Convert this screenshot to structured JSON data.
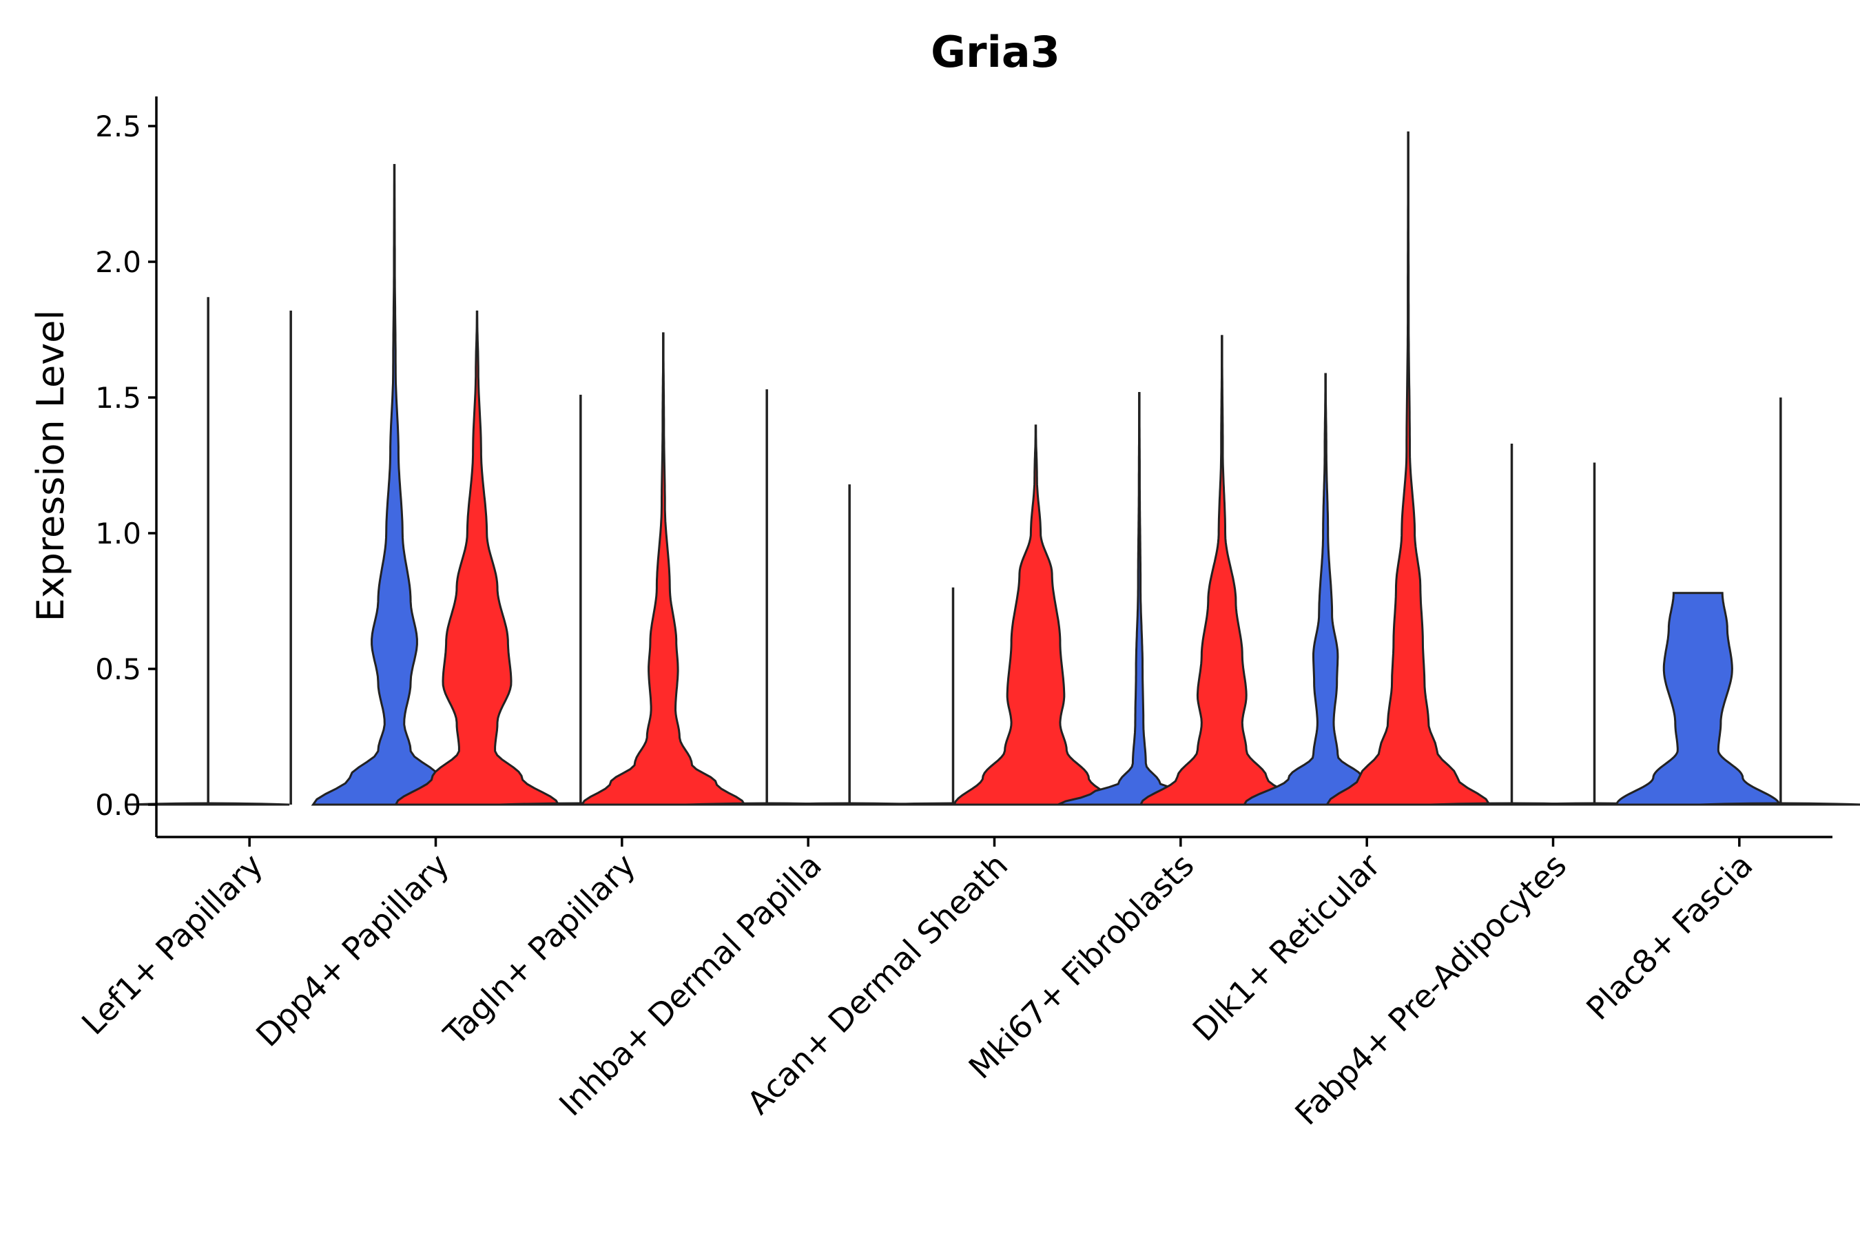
{
  "chart_data": {
    "type": "violin",
    "title": "Gria3",
    "xlabel": "",
    "ylabel": "Expression Level",
    "ylim": [
      -0.12,
      2.6
    ],
    "yticks": [
      0.0,
      0.5,
      1.0,
      1.5,
      2.0,
      2.5
    ],
    "ytick_labels": [
      "0.0",
      "0.5",
      "1.0",
      "1.5",
      "2.0",
      "2.5"
    ],
    "colors": {
      "group1": "#4169E1",
      "group2": "#FF2A2A"
    },
    "categories": [
      "Lef1+ Papillary",
      "Dpp4+ Papillary",
      "Tagln+ Papillary",
      "Inhba+ Dermal Papilla",
      "Acan+ Dermal Sheath",
      "Mki67+ Fibroblasts",
      "Dlk1+ Reticular",
      "Fabp4+ Pre-Adipocytes",
      "Plac8+ Fascia"
    ],
    "series": [
      {
        "name": "group1",
        "max": [
          1.87,
          2.36,
          1.51,
          1.53,
          0.8,
          1.52,
          1.59,
          1.33,
          0.78
        ],
        "profiles": [
          [
            [
              0.0,
              1.0
            ],
            [
              0.02,
              0.3
            ],
            [
              0.05,
              0.0
            ]
          ],
          [
            [
              0.0,
              1.0
            ],
            [
              0.1,
              0.55
            ],
            [
              0.2,
              0.2
            ],
            [
              0.3,
              0.12
            ],
            [
              0.45,
              0.2
            ],
            [
              0.6,
              0.28
            ],
            [
              0.75,
              0.2
            ],
            [
              1.0,
              0.1
            ],
            [
              1.3,
              0.05
            ],
            [
              1.6,
              0.015
            ],
            [
              2.0,
              0.005
            ],
            [
              2.36,
              0.0
            ]
          ],
          [
            [
              0.0,
              1.0
            ],
            [
              0.02,
              0.3
            ],
            [
              0.05,
              0.0
            ]
          ],
          [
            [
              0.0,
              1.0
            ],
            [
              0.02,
              0.3
            ],
            [
              0.05,
              0.0
            ]
          ],
          [
            [
              0.0,
              1.0
            ],
            [
              0.02,
              0.3
            ],
            [
              0.05,
              0.0
            ]
          ],
          [
            [
              0.0,
              1.0
            ],
            [
              0.04,
              0.6
            ],
            [
              0.08,
              0.25
            ],
            [
              0.15,
              0.08
            ],
            [
              0.3,
              0.05
            ],
            [
              0.5,
              0.04
            ],
            [
              0.8,
              0.015
            ],
            [
              1.2,
              0.005
            ],
            [
              1.52,
              0.0
            ]
          ],
          [
            [
              0.0,
              1.0
            ],
            [
              0.1,
              0.45
            ],
            [
              0.18,
              0.15
            ],
            [
              0.3,
              0.1
            ],
            [
              0.45,
              0.14
            ],
            [
              0.55,
              0.15
            ],
            [
              0.7,
              0.08
            ],
            [
              1.0,
              0.03
            ],
            [
              1.3,
              0.01
            ],
            [
              1.59,
              0.0
            ]
          ],
          [
            [
              0.0,
              1.0
            ],
            [
              0.02,
              0.3
            ],
            [
              0.05,
              0.0
            ]
          ],
          [
            [
              0.0,
              1.0
            ],
            [
              0.1,
              0.55
            ],
            [
              0.2,
              0.25
            ],
            [
              0.3,
              0.28
            ],
            [
              0.5,
              0.42
            ],
            [
              0.65,
              0.36
            ],
            [
              0.78,
              0.3
            ]
          ]
        ]
      },
      {
        "name": "group2",
        "max": [
          1.82,
          1.82,
          1.74,
          1.18,
          1.4,
          1.73,
          2.48,
          1.26,
          1.5
        ],
        "profiles": [
          [
            [
              0.0,
              0.0
            ]
          ],
          [
            [
              0.0,
              1.0
            ],
            [
              0.1,
              0.55
            ],
            [
              0.2,
              0.22
            ],
            [
              0.3,
              0.25
            ],
            [
              0.45,
              0.42
            ],
            [
              0.6,
              0.38
            ],
            [
              0.8,
              0.25
            ],
            [
              1.0,
              0.12
            ],
            [
              1.3,
              0.05
            ],
            [
              1.6,
              0.015
            ],
            [
              1.82,
              0.0
            ]
          ],
          [
            [
              0.0,
              1.0
            ],
            [
              0.08,
              0.65
            ],
            [
              0.15,
              0.35
            ],
            [
              0.25,
              0.2
            ],
            [
              0.35,
              0.15
            ],
            [
              0.5,
              0.18
            ],
            [
              0.6,
              0.16
            ],
            [
              0.8,
              0.08
            ],
            [
              1.1,
              0.02
            ],
            [
              1.4,
              0.008
            ],
            [
              1.74,
              0.0
            ]
          ],
          [
            [
              0.0,
              1.0
            ],
            [
              0.02,
              0.3
            ],
            [
              0.05,
              0.0
            ]
          ],
          [
            [
              0.0,
              1.0
            ],
            [
              0.1,
              0.65
            ],
            [
              0.2,
              0.38
            ],
            [
              0.3,
              0.3
            ],
            [
              0.4,
              0.35
            ],
            [
              0.6,
              0.3
            ],
            [
              0.85,
              0.2
            ],
            [
              1.0,
              0.06
            ],
            [
              1.2,
              0.015
            ],
            [
              1.4,
              0.0
            ]
          ],
          [
            [
              0.0,
              1.0
            ],
            [
              0.1,
              0.55
            ],
            [
              0.2,
              0.3
            ],
            [
              0.3,
              0.25
            ],
            [
              0.4,
              0.3
            ],
            [
              0.55,
              0.25
            ],
            [
              0.75,
              0.17
            ],
            [
              1.0,
              0.04
            ],
            [
              1.3,
              0.01
            ],
            [
              1.73,
              0.0
            ]
          ],
          [
            [
              0.0,
              1.0
            ],
            [
              0.1,
              0.6
            ],
            [
              0.2,
              0.35
            ],
            [
              0.3,
              0.25
            ],
            [
              0.45,
              0.2
            ],
            [
              0.6,
              0.18
            ],
            [
              0.8,
              0.15
            ],
            [
              1.0,
              0.08
            ],
            [
              1.3,
              0.02
            ],
            [
              1.8,
              0.005
            ],
            [
              2.48,
              0.0
            ]
          ],
          [
            [
              0.0,
              1.0
            ],
            [
              0.02,
              0.3
            ],
            [
              0.05,
              0.0
            ]
          ],
          [
            [
              0.0,
              1.0
            ],
            [
              0.02,
              0.3
            ],
            [
              0.05,
              0.0
            ]
          ]
        ]
      }
    ]
  }
}
